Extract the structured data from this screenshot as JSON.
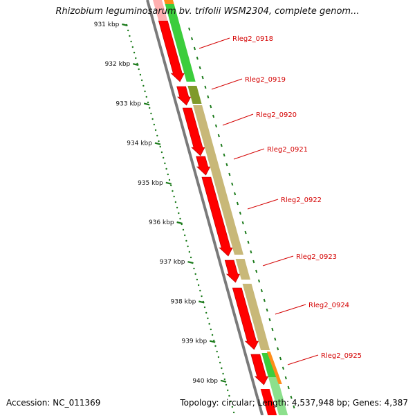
{
  "title": "Rhizobium leguminosarum bv. trifolii WSM2304, complete genom...",
  "footer": {
    "accession": "Accession: NC_011369",
    "summary": "Topology: circular; Length: 4,537,948 bp; Genes: 4,387"
  },
  "colors": {
    "backbone": "#7a7a7a",
    "forward_strand": "#ff0000",
    "reverse_strand": "#3ccd3c",
    "reverse_strand_light": "#8ce08c",
    "olive": "#c8b878",
    "olive_dark": "#7f9a2a",
    "orange": "#ff8c1a",
    "tick": "#1a7a1a",
    "label": "#d40000"
  },
  "scale": {
    "ticks": [
      "931 kbp",
      "932 kbp",
      "933 kbp",
      "934 kbp",
      "935 kbp",
      "936 kbp",
      "937 kbp",
      "938 kbp",
      "939 kbp",
      "940 kbp"
    ]
  },
  "genes": [
    {
      "label": "Rleg2_0918"
    },
    {
      "label": "Rleg2_0919"
    },
    {
      "label": "Rleg2_0920"
    },
    {
      "label": "Rleg2_0921"
    },
    {
      "label": "Rleg2_0922"
    },
    {
      "label": "Rleg2_0923"
    },
    {
      "label": "Rleg2_0924"
    },
    {
      "label": "Rleg2_0925"
    }
  ]
}
